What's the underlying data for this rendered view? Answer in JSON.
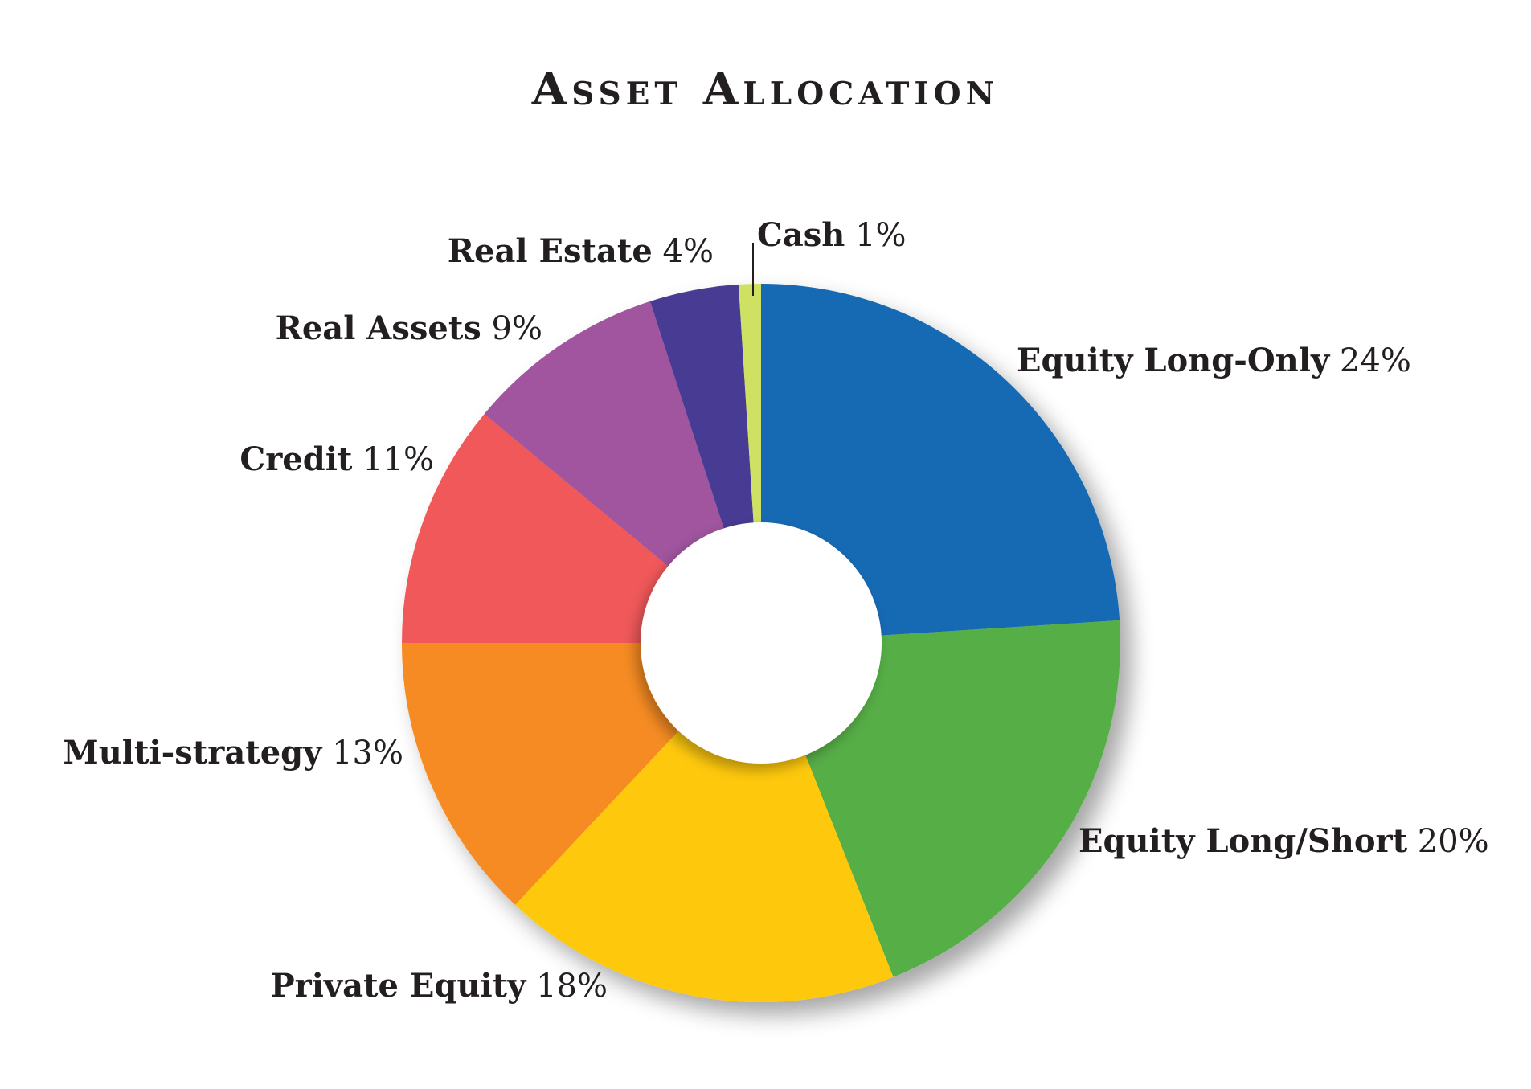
{
  "chart_data": {
    "type": "pie",
    "style": "donut",
    "title": "Asset Allocation",
    "unit": "%",
    "slices": [
      {
        "label": "Equity Long-Only",
        "value": 24,
        "value_label": "24%",
        "color": "#1569b3"
      },
      {
        "label": "Equity Long/Short",
        "value": 20,
        "value_label": "20%",
        "color": "#56ae47"
      },
      {
        "label": "Private Equity",
        "value": 18,
        "value_label": "18%",
        "color": "#fec80c"
      },
      {
        "label": "Multi-strategy",
        "value": 13,
        "value_label": "13%",
        "color": "#f58b21"
      },
      {
        "label": "Credit",
        "value": 11,
        "value_label": "11%",
        "color": "#f0585a"
      },
      {
        "label": "Real Assets",
        "value": 9,
        "value_label": "9%",
        "color": "#a0559e"
      },
      {
        "label": "Real Estate",
        "value": 4,
        "value_label": "4%",
        "color": "#473a93"
      },
      {
        "label": "Cash",
        "value": 1,
        "value_label": "1%",
        "color": "#cfe162"
      }
    ]
  }
}
